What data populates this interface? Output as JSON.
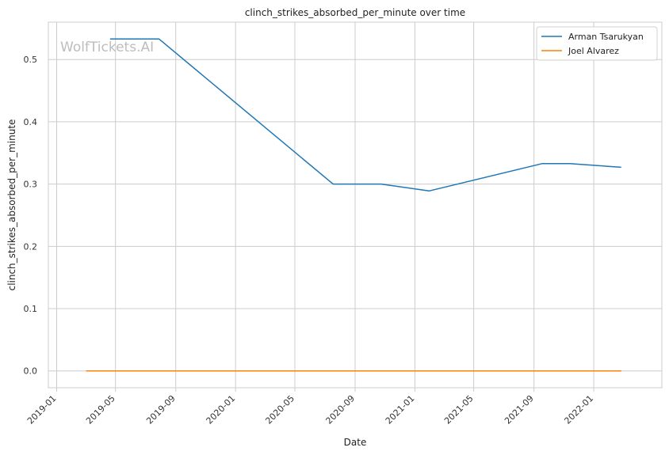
{
  "chart_data": {
    "type": "line",
    "title": "clinch_strikes_absorbed_per_minute over time",
    "xlabel": "Date",
    "ylabel": "clinch_strikes_absorbed_per_minute",
    "watermark": "WolfTickets.AI",
    "x_ticks": [
      "2019-01",
      "2019-05",
      "2019-09",
      "2020-01",
      "2020-05",
      "2020-09",
      "2021-01",
      "2021-05",
      "2021-09",
      "2022-01"
    ],
    "y_ticks": [
      "0.0",
      "0.1",
      "0.2",
      "0.3",
      "0.4",
      "0.5"
    ],
    "ylim": [
      -0.027,
      0.56
    ],
    "xlim": [
      "2018-12-15",
      "2022-05-20"
    ],
    "grid": true,
    "legend_position": "top-right",
    "series": [
      {
        "name": "Arman Tsarukyan",
        "color": "#1f77b4",
        "x": [
          "2019-04-20",
          "2019-07-29",
          "2020-07-18",
          "2020-10-24",
          "2021-01-30",
          "2021-09-18",
          "2021-11-13",
          "2022-02-26"
        ],
        "y": [
          0.533,
          0.533,
          0.3,
          0.3,
          0.289,
          0.333,
          0.333,
          0.327
        ]
      },
      {
        "name": "Joel Alvarez",
        "color": "#ff7f0e",
        "x": [
          "2019-03-02",
          "2022-02-26"
        ],
        "y": [
          0.0,
          0.0
        ]
      }
    ]
  }
}
